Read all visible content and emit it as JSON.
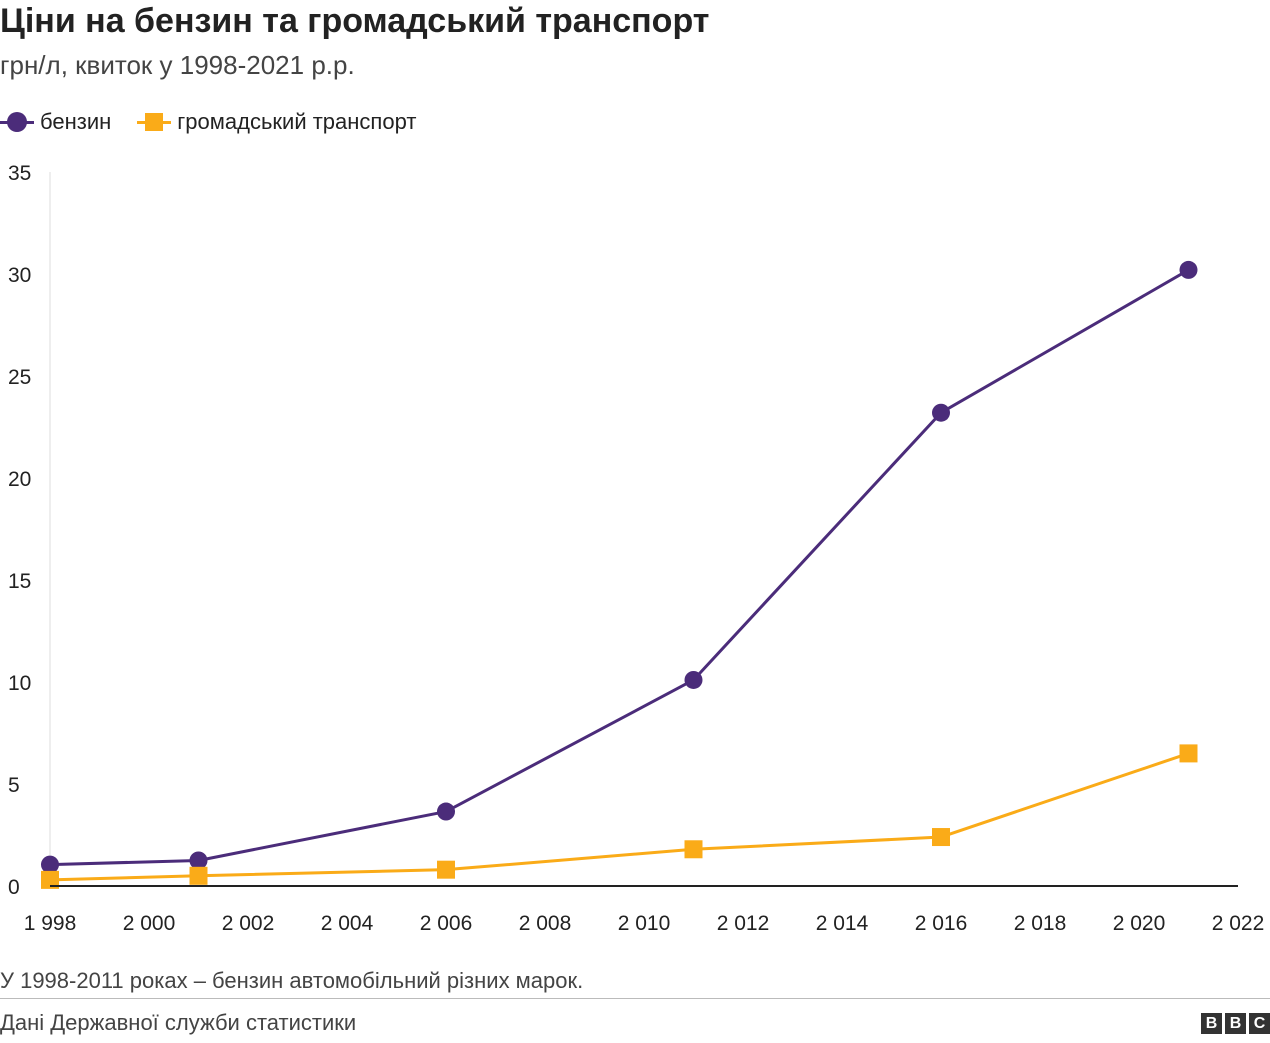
{
  "header": {
    "title": "Ціни на бензин та громадський транспорт",
    "subtitle": "грн/л, квиток у 1998-2021 р.р."
  },
  "legend": {
    "series_0": "бензин",
    "series_1": "громадський транспорт"
  },
  "footer": {
    "note": "У 1998-2011 роках – бензин автомобільний різних марок.",
    "source": "Дані Державної служби статистики",
    "logo_letters": [
      "B",
      "B",
      "C"
    ]
  },
  "chart_data": {
    "type": "line",
    "title": "Ціни на бензин та громадський транспорт",
    "subtitle": "грн/л, квиток у 1998-2021 р.р.",
    "xlabel": "",
    "ylabel": "",
    "xlim": [
      1998,
      2022
    ],
    "ylim": [
      0,
      35
    ],
    "x_ticks": [
      1998,
      2000,
      2002,
      2004,
      2006,
      2008,
      2010,
      2012,
      2014,
      2016,
      2018,
      2020,
      2022
    ],
    "x_tick_labels": [
      "1 998",
      "2 000",
      "2 002",
      "2 004",
      "2 006",
      "2 008",
      "2 010",
      "2 012",
      "2 014",
      "2 016",
      "2 018",
      "2 020",
      "2 022"
    ],
    "y_ticks": [
      0,
      5,
      10,
      15,
      20,
      25,
      30,
      35
    ],
    "y_tick_labels": [
      "0",
      "5",
      "10",
      "15",
      "20",
      "25",
      "30",
      "35"
    ],
    "grid": false,
    "legend_position": "top-left",
    "series": [
      {
        "name": "бензин",
        "color": "#4b2c7a",
        "marker": "circle",
        "x": [
          1998,
          2001,
          2006,
          2011,
          2016,
          2021
        ],
        "y": [
          1.05,
          1.25,
          3.65,
          10.1,
          23.2,
          30.2
        ]
      },
      {
        "name": "громадський транспорт",
        "color": "#faab18",
        "marker": "square",
        "x": [
          1998,
          2001,
          2006,
          2011,
          2016,
          2021
        ],
        "y": [
          0.3,
          0.5,
          0.8,
          1.8,
          2.4,
          6.5
        ]
      }
    ]
  }
}
